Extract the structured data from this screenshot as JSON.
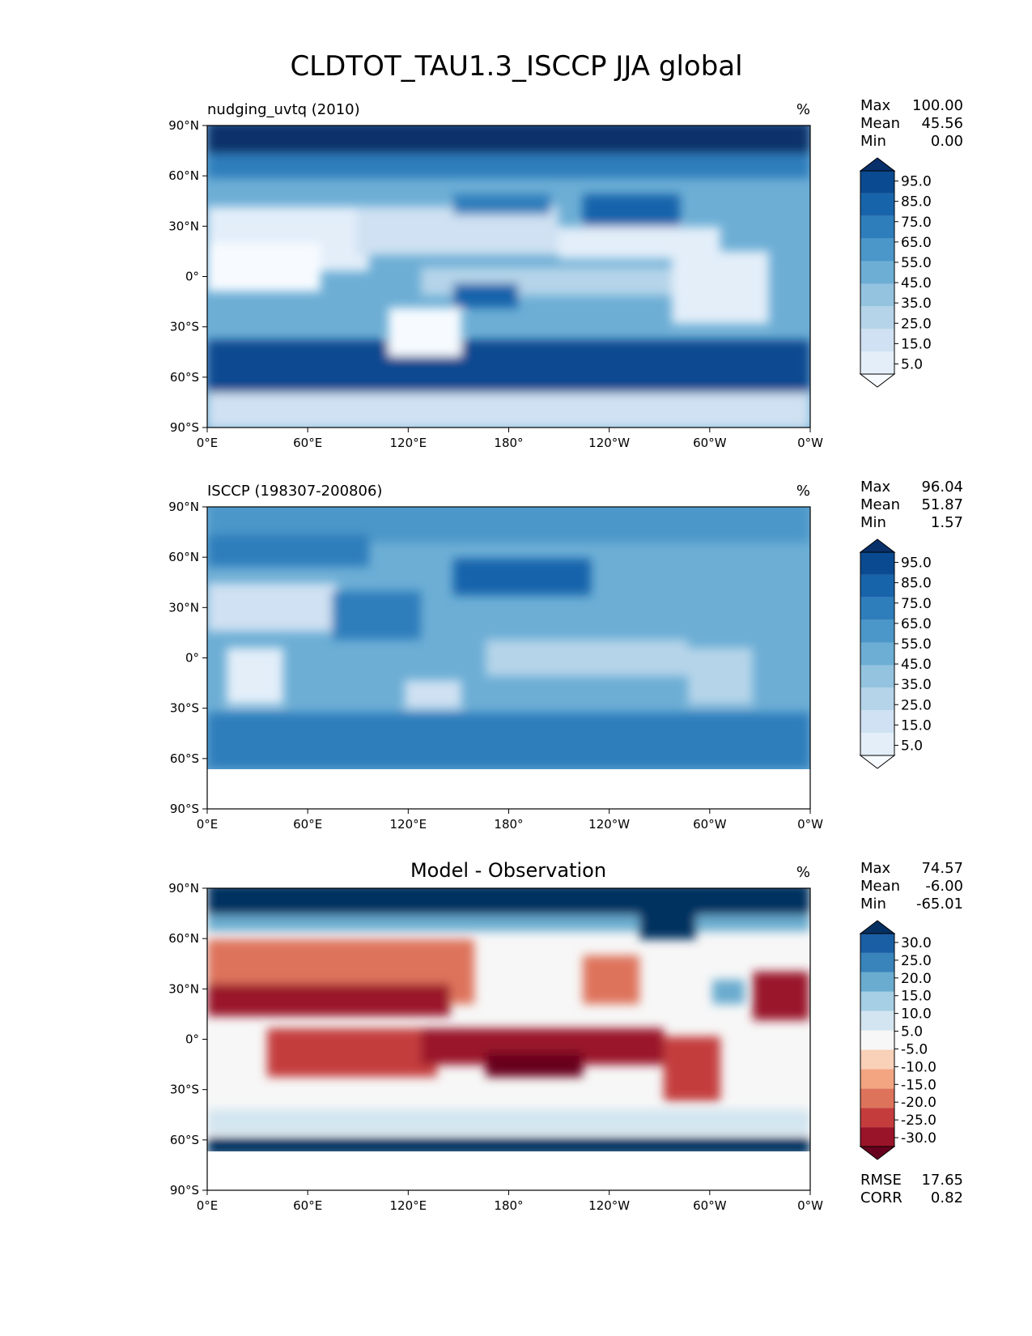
{
  "figure_title": "CLDTOT_TAU1.3_ISCCP JJA global",
  "chart_data": [
    {
      "type": "heatmap",
      "title": "nudging_uvtq (2010)",
      "units": "%",
      "xlabel": "",
      "ylabel": "",
      "x_ticks": [
        "0°E",
        "60°E",
        "120°E",
        "180°",
        "120°W",
        "60°W",
        "0°W"
      ],
      "y_ticks": [
        "90°N",
        "60°N",
        "30°N",
        "0°",
        "30°S",
        "60°S",
        "90°S"
      ],
      "x_range": [
        0,
        360
      ],
      "y_range": [
        -90,
        90
      ],
      "stats": [
        {
          "label": "Max",
          "value": "100.00"
        },
        {
          "label": "Mean",
          "value": "45.56"
        },
        {
          "label": "Min",
          "value": "0.00"
        }
      ],
      "colorbar_levels": [
        0,
        5,
        10,
        15,
        20,
        25,
        30,
        35,
        40,
        45,
        50,
        55,
        60,
        65,
        70,
        75,
        80,
        85,
        90,
        95,
        100
      ],
      "colorbar_labels": [
        "95.0",
        "85.0",
        "75.0",
        "65.0",
        "55.0",
        "45.0",
        "35.0",
        "25.0",
        "15.0",
        "5.0"
      ],
      "colormap": "Blues"
    },
    {
      "type": "heatmap",
      "title": "ISCCP (198307-200806)",
      "units": "%",
      "xlabel": "",
      "ylabel": "",
      "x_ticks": [
        "0°E",
        "60°E",
        "120°E",
        "180°",
        "120°W",
        "60°W",
        "0°W"
      ],
      "y_ticks": [
        "90°N",
        "60°N",
        "30°N",
        "0°",
        "30°S",
        "60°S",
        "90°S"
      ],
      "x_range": [
        0,
        360
      ],
      "y_range": [
        -90,
        90
      ],
      "stats": [
        {
          "label": "Max",
          "value": "96.04"
        },
        {
          "label": "Mean",
          "value": "51.87"
        },
        {
          "label": "Min",
          "value": "1.57"
        }
      ],
      "colorbar_levels": [
        0,
        5,
        10,
        15,
        20,
        25,
        30,
        35,
        40,
        45,
        50,
        55,
        60,
        65,
        70,
        75,
        80,
        85,
        90,
        95,
        100
      ],
      "colorbar_labels": [
        "95.0",
        "85.0",
        "75.0",
        "65.0",
        "55.0",
        "45.0",
        "35.0",
        "25.0",
        "15.0",
        "5.0"
      ],
      "colormap": "Blues"
    },
    {
      "type": "heatmap",
      "title": "Model - Observation",
      "units": "%",
      "xlabel": "",
      "ylabel": "",
      "x_ticks": [
        "0°E",
        "60°E",
        "120°E",
        "180°",
        "120°W",
        "60°W",
        "0°W"
      ],
      "y_ticks": [
        "90°N",
        "60°N",
        "30°N",
        "0°",
        "30°S",
        "60°S",
        "90°S"
      ],
      "x_range": [
        0,
        360
      ],
      "y_range": [
        -90,
        90
      ],
      "stats": [
        {
          "label": "Max",
          "value": "74.57"
        },
        {
          "label": "Mean",
          "value": "-6.00"
        },
        {
          "label": "Min",
          "value": "-65.01"
        }
      ],
      "extra_stats": [
        {
          "label": "RMSE",
          "value": "17.65"
        },
        {
          "label": "CORR",
          "value": "0.82"
        }
      ],
      "colorbar_levels": [
        -35,
        -30,
        -25,
        -20,
        -15,
        -10,
        -5,
        5,
        10,
        15,
        20,
        25,
        30,
        35
      ],
      "colorbar_labels": [
        "30.0",
        "25.0",
        "20.0",
        "15.0",
        "10.0",
        "5.0",
        "-5.0",
        "-10.0",
        "-15.0",
        "-20.0",
        "-25.0",
        "-30.0"
      ],
      "colormap": "RdBu"
    }
  ],
  "colors": {
    "blues": [
      "#f7fbff",
      "#e3eef9",
      "#cfe1f2",
      "#b5d4e9",
      "#93c3df",
      "#6daed5",
      "#4b97c9",
      "#2f7ebc",
      "#1764ab",
      "#0a4a90",
      "#08306b"
    ],
    "diff": [
      "#67001f",
      "#9a1429",
      "#c43c3c",
      "#de735c",
      "#f3a481",
      "#f9d0b8",
      "#f7f7f7",
      "#d2e5f0",
      "#a6cee4",
      "#6aaccf",
      "#3884bb",
      "#1a5ea4",
      "#053061"
    ],
    "land_line": "#222222"
  }
}
